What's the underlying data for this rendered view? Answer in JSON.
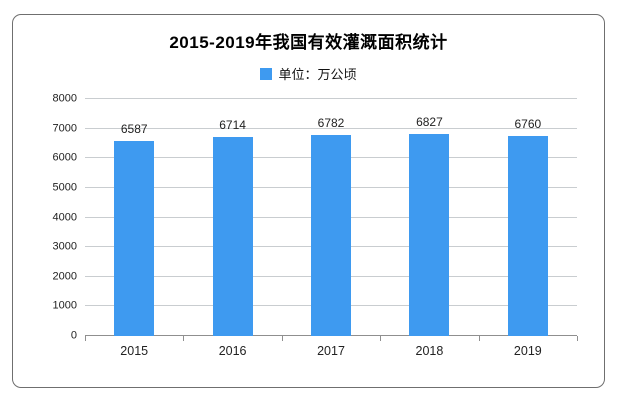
{
  "chart_data": {
    "type": "bar",
    "title": "2015-2019年我国有效灌溉面积统计",
    "legend_label": "单位：万公顷",
    "legend_position": "top",
    "series_name": "单位：万公顷",
    "categories": [
      "2015",
      "2016",
      "2017",
      "2018",
      "2019"
    ],
    "values": [
      6587,
      6714,
      6782,
      6827,
      6760
    ],
    "data_labels": [
      "6587",
      "6714",
      "6782",
      "6827",
      "6760"
    ],
    "xlabel": "",
    "ylabel": "",
    "ylim": [
      0,
      8000
    ],
    "y_ticks": [
      0,
      1000,
      2000,
      3000,
      4000,
      5000,
      6000,
      7000,
      8000
    ],
    "grid": true,
    "bar_color": "#3E9AF0",
    "grid_color": "#c9cdd0",
    "axis_color": "#8f8f8f",
    "card_border_color": "#6f6f6f"
  }
}
